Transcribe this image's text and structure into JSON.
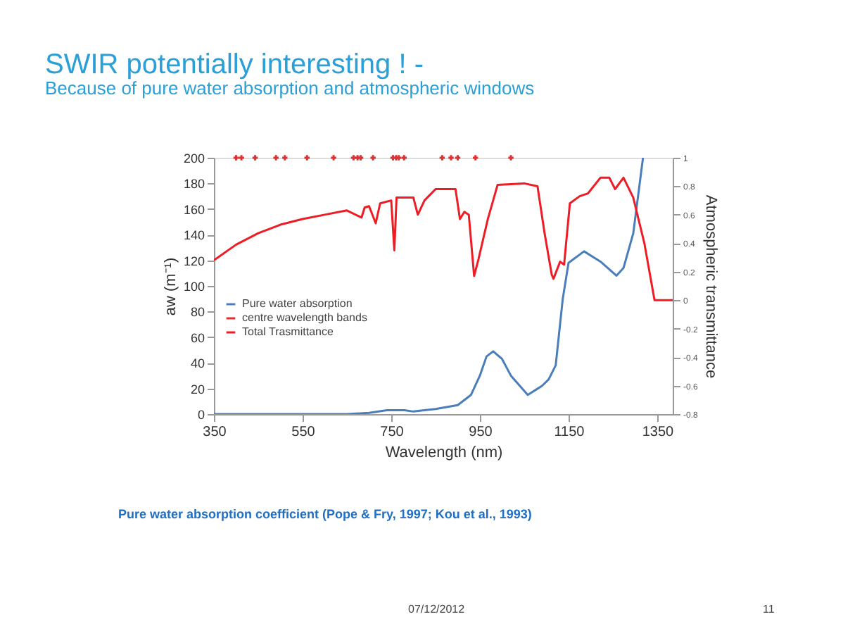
{
  "chart_data": {
    "type": "line",
    "title": "SWIR potentially interesting !  -",
    "subtitle": "Because of pure water absorption and atmospheric windows",
    "xlabel": "Wavelength (nm)",
    "ylabel": "aw (m⁻¹)",
    "y2label": "Atmospheric transmittance",
    "xlim": [
      350,
      1385
    ],
    "xticks": [
      350,
      550,
      750,
      950,
      1150,
      1350
    ],
    "ylim": [
      0,
      200
    ],
    "yticks": [
      0,
      20,
      40,
      60,
      80,
      100,
      120,
      140,
      160,
      180,
      200
    ],
    "y2lim": [
      -0.8,
      1
    ],
    "y2ticks": [
      -0.8,
      -0.6,
      -0.4,
      -0.2,
      0,
      0.2,
      0.4,
      0.6,
      0.8,
      1
    ],
    "grid": false,
    "legend": "left",
    "series": [
      {
        "name": "Pure water absorption",
        "color": "#4a7ebb",
        "x": [
          350,
          500,
          650,
          700,
          740,
          780,
          800,
          850,
          900,
          930,
          950,
          965,
          980,
          1000,
          1020,
          1058,
          1090,
          1105,
          1121,
          1137,
          1150,
          1185,
          1222,
          1258,
          1274,
          1296,
          1318
        ],
        "values": [
          0,
          0,
          0,
          1,
          3,
          3,
          2,
          4,
          7,
          15,
          30,
          45,
          49,
          43,
          30,
          15,
          22,
          27,
          38,
          90,
          118,
          127,
          119,
          108,
          114,
          141,
          200
        ]
      },
      {
        "name": "centre wavelength bands",
        "type": "scatter",
        "marker": "cross",
        "color": "#e03030",
        "x": [
          400,
          412,
          443,
          490,
          510,
          560,
          620,
          665,
          674,
          681,
          709,
          754,
          761,
          767,
          779,
          865,
          885,
          900,
          940,
          1020
        ],
        "values": [
          200,
          200,
          200,
          200,
          200,
          200,
          200,
          200,
          200,
          200,
          200,
          200,
          200,
          200,
          200,
          200,
          200,
          200,
          200,
          200
        ]
      },
      {
        "name": "Total Trasmittance",
        "axis": "y2",
        "color": "#ee1c25",
        "x": [
          350,
          400,
          450,
          500,
          550,
          600,
          650,
          683,
          690,
          700,
          715,
          725,
          750,
          757,
          762,
          800,
          810,
          825,
          850,
          895,
          905,
          915,
          925,
          937,
          947,
          968,
          990,
          1050,
          1080,
          1096,
          1112,
          1116,
          1131,
          1140,
          1153,
          1175,
          1194,
          1222,
          1242,
          1255,
          1274,
          1296,
          1321,
          1344,
          1385
        ],
        "values": [
          0.28,
          0.39,
          0.47,
          0.53,
          0.57,
          0.6,
          0.63,
          0.58,
          0.65,
          0.66,
          0.54,
          0.68,
          0.7,
          0.35,
          0.72,
          0.72,
          0.6,
          0.7,
          0.78,
          0.78,
          0.57,
          0.62,
          0.6,
          0.17,
          0.29,
          0.57,
          0.81,
          0.82,
          0.8,
          0.47,
          0.18,
          0.15,
          0.27,
          0.25,
          0.68,
          0.73,
          0.75,
          0.86,
          0.86,
          0.78,
          0.86,
          0.72,
          0.4,
          0,
          0
        ]
      }
    ],
    "annotations": [
      "Pure water absorption coefficient (Pope & Fry, 1997; Kou et al., 1993)",
      "07/12/2012",
      "11"
    ]
  }
}
